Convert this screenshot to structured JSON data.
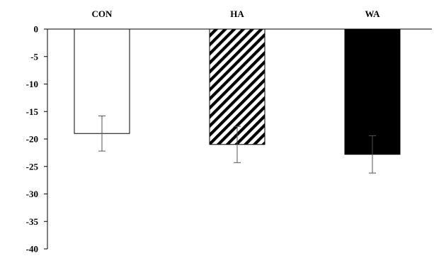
{
  "chart_data": {
    "type": "bar",
    "title": "",
    "xlabel": "",
    "ylabel": "",
    "categories": [
      "CON",
      "HA",
      "WA"
    ],
    "values": [
      -19.0,
      -21.0,
      -22.8
    ],
    "errors": [
      3.2,
      3.3,
      3.4
    ],
    "ylim": [
      -40,
      0
    ],
    "yticks": [
      0,
      -5,
      -10,
      -15,
      -20,
      -25,
      -30,
      -35,
      -40
    ],
    "category_labels_position": "top",
    "grid": false,
    "legend": "none",
    "bar_styles": [
      {
        "fill": "white",
        "pattern": "none"
      },
      {
        "fill": "white",
        "pattern": "diagonal-hatch"
      },
      {
        "fill": "black",
        "pattern": "none"
      }
    ],
    "colors": {
      "outline": "#000000",
      "solid": "#000000",
      "blank": "#ffffff"
    }
  }
}
